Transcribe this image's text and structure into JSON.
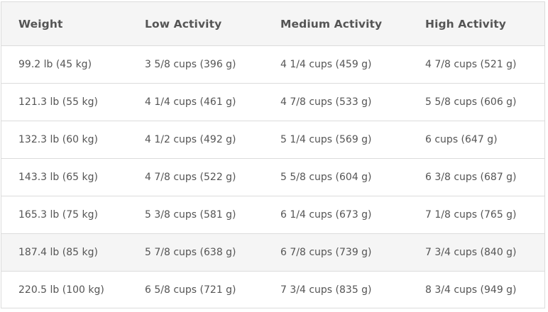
{
  "table": {
    "headers": [
      "Weight",
      "Low Activity",
      "Medium Activity",
      "High Activity"
    ],
    "rows": [
      [
        "99.2 lb (45 kg)",
        "3 5/8 cups (396 g)",
        "4 1/4 cups (459 g)",
        "4 7/8 cups (521 g)"
      ],
      [
        "121.3 lb (55 kg)",
        "4 1/4 cups (461 g)",
        "4 7/8 cups (533 g)",
        "5 5/8 cups (606 g)"
      ],
      [
        "132.3 lb (60 kg)",
        "4 1/2 cups (492 g)",
        "5 1/4 cups (569 g)",
        "6 cups (647 g)"
      ],
      [
        "143.3 lb (65 kg)",
        "4 7/8 cups (522 g)",
        "5 5/8 cups (604 g)",
        "6 3/8 cups (687 g)"
      ],
      [
        "165.3 lb (75 kg)",
        "5 3/8 cups (581 g)",
        "6 1/4 cups (673 g)",
        "7 1/8 cups (765 g)"
      ],
      [
        "187.4 lb (85 kg)",
        "5 7/8 cups (638 g)",
        "6 7/8 cups (739 g)",
        "7 3/4 cups (840 g)"
      ],
      [
        "220.5 lb (100 kg)",
        "6 5/8 cups (721 g)",
        "7 3/4 cups (835 g)",
        "8 3/4 cups (949 g)"
      ]
    ]
  }
}
